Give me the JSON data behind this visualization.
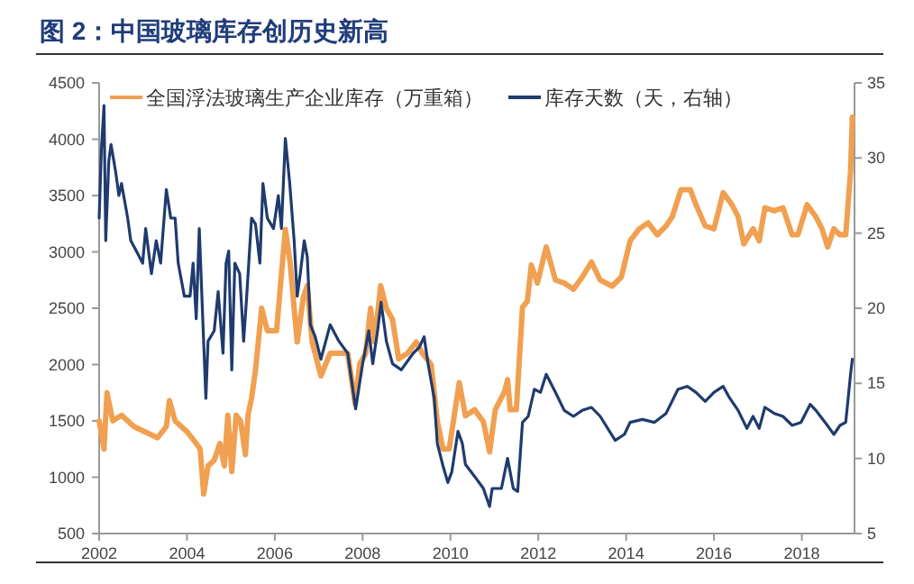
{
  "chart_data": {
    "type": "line",
    "title": "图 2：中国玻璃库存创历史新高",
    "xlim": [
      2002,
      2019.2
    ],
    "xticks": [
      2002,
      2004,
      2006,
      2008,
      2010,
      2012,
      2014,
      2016,
      2018
    ],
    "ylim": [
      500,
      4500
    ],
    "yticks": [
      500,
      1000,
      1500,
      2000,
      2500,
      3000,
      3500,
      4000,
      4500
    ],
    "y2lim": [
      5,
      35
    ],
    "y2ticks": [
      5,
      10,
      15,
      20,
      25,
      30,
      35
    ],
    "legend": "top",
    "grid": false,
    "series": [
      {
        "name": "全国浮法玻璃生产企业库存（万重箱）",
        "color": "#f0a050",
        "x": [
          2002.0,
          2002.11,
          2002.18,
          2002.31,
          2002.51,
          2002.79,
          2003.06,
          2003.33,
          2003.53,
          2003.6,
          2003.73,
          2003.87,
          2004.01,
          2004.21,
          2004.3,
          2004.38,
          2004.48,
          2004.62,
          2004.75,
          2004.85,
          2004.93,
          2005.02,
          2005.12,
          2005.22,
          2005.33,
          2005.39,
          2005.47,
          2005.56,
          2005.7,
          2005.83,
          2006.04,
          2006.15,
          2006.24,
          2006.35,
          2006.44,
          2006.51,
          2006.65,
          2006.74,
          2006.85,
          2007.05,
          2007.26,
          2007.53,
          2007.66,
          2007.83,
          2007.93,
          2008.07,
          2008.18,
          2008.27,
          2008.41,
          2008.54,
          2008.68,
          2008.82,
          2009.02,
          2009.22,
          2009.36,
          2009.56,
          2009.7,
          2009.83,
          2009.97,
          2010.2,
          2010.34,
          2010.55,
          2010.75,
          2010.89,
          2011.02,
          2011.23,
          2011.3,
          2011.36,
          2011.5,
          2011.64,
          2011.75,
          2011.84,
          2011.98,
          2012.18,
          2012.39,
          2012.59,
          2012.8,
          2013.0,
          2013.21,
          2013.41,
          2013.68,
          2013.89,
          2014.09,
          2014.3,
          2014.5,
          2014.71,
          2014.91,
          2015.05,
          2015.25,
          2015.46,
          2015.59,
          2015.8,
          2016.0,
          2016.21,
          2016.41,
          2016.55,
          2016.68,
          2016.89,
          2017.03,
          2017.16,
          2017.37,
          2017.57,
          2017.78,
          2017.91,
          2018.12,
          2018.32,
          2018.46,
          2018.59,
          2018.73,
          2018.87,
          2019.0,
          2019.11,
          2019.15
        ],
        "values": [
          1500,
          1250,
          1750,
          1500,
          1550,
          1450,
          1400,
          1350,
          1450,
          1680,
          1500,
          1450,
          1400,
          1300,
          1250,
          850,
          1100,
          1150,
          1300,
          1100,
          1550,
          1050,
          1550,
          1500,
          1200,
          1550,
          1700,
          1950,
          2500,
          2300,
          2300,
          2800,
          3200,
          2900,
          2500,
          2200,
          2600,
          2700,
          2200,
          1900,
          2100,
          2100,
          2100,
          1650,
          2000,
          2100,
          2500,
          2200,
          2700,
          2500,
          2400,
          2050,
          2100,
          2200,
          2100,
          2000,
          1500,
          1250,
          1250,
          1840,
          1545,
          1599,
          1492,
          1224,
          1599,
          1759,
          1866,
          1599,
          1599,
          2509,
          2562,
          2883,
          2723,
          3044,
          2750,
          2723,
          2669,
          2776,
          2910,
          2750,
          2696,
          2776,
          3098,
          3205,
          3258,
          3151,
          3231,
          3312,
          3553,
          3553,
          3419,
          3231,
          3205,
          3526,
          3419,
          3312,
          3071,
          3205,
          3098,
          3392,
          3365,
          3392,
          3151,
          3151,
          3419,
          3312,
          3205,
          3044,
          3205,
          3151,
          3151,
          3713,
          4195
        ]
      },
      {
        "name": "库存天数（天，右轴）",
        "color": "#1f3b6e",
        "axis": "y2",
        "x": [
          2002.0,
          2002.05,
          2002.11,
          2002.15,
          2002.22,
          2002.27,
          2002.38,
          2002.45,
          2002.51,
          2002.65,
          2002.72,
          2002.85,
          2002.99,
          2003.06,
          2003.19,
          2003.3,
          2003.4,
          2003.53,
          2003.63,
          2003.73,
          2003.8,
          2003.94,
          2004.07,
          2004.14,
          2004.21,
          2004.28,
          2004.37,
          2004.43,
          2004.48,
          2004.62,
          2004.71,
          2004.82,
          2004.89,
          2004.95,
          2005.02,
          2005.09,
          2005.2,
          2005.29,
          2005.36,
          2005.47,
          2005.56,
          2005.66,
          2005.73,
          2005.83,
          2005.97,
          2006.08,
          2006.15,
          2006.24,
          2006.34,
          2006.44,
          2006.51,
          2006.58,
          2006.67,
          2006.74,
          2006.81,
          2006.92,
          2007.05,
          2007.26,
          2007.46,
          2007.66,
          2007.84,
          2008.0,
          2008.14,
          2008.23,
          2008.34,
          2008.42,
          2008.54,
          2008.68,
          2008.88,
          2009.15,
          2009.29,
          2009.4,
          2009.49,
          2009.63,
          2009.7,
          2009.83,
          2009.94,
          2010.03,
          2010.17,
          2010.27,
          2010.34,
          2010.55,
          2010.75,
          2010.89,
          2010.95,
          2011.16,
          2011.3,
          2011.43,
          2011.53,
          2011.64,
          2011.77,
          2011.91,
          2012.05,
          2012.18,
          2012.39,
          2012.59,
          2012.8,
          2013.0,
          2013.21,
          2013.41,
          2013.75,
          2013.96,
          2014.09,
          2014.37,
          2014.64,
          2014.91,
          2015.18,
          2015.39,
          2015.59,
          2015.8,
          2016.0,
          2016.21,
          2016.34,
          2016.55,
          2016.75,
          2016.89,
          2017.03,
          2017.16,
          2017.37,
          2017.57,
          2017.78,
          2017.98,
          2018.19,
          2018.32,
          2018.53,
          2018.73,
          2018.87,
          2019.0,
          2019.11,
          2019.15
        ],
        "values": [
          26,
          30.5,
          33.5,
          24.5,
          29.8,
          30.9,
          29,
          27.5,
          28.3,
          26,
          24.5,
          23.8,
          23,
          25.3,
          22.3,
          24.5,
          23,
          27.9,
          26,
          26,
          23,
          20.8,
          20.8,
          23,
          19.3,
          25.3,
          18.5,
          14,
          17.8,
          18.5,
          21.1,
          17,
          23,
          23.8,
          15.9,
          23,
          22.3,
          17.8,
          20.8,
          26,
          25.6,
          23,
          28.3,
          26,
          25.3,
          27.5,
          25.3,
          31.3,
          28.3,
          24.5,
          20.8,
          22.3,
          24.5,
          23.4,
          18.9,
          18.1,
          16.6,
          18.9,
          17.8,
          17,
          13.3,
          16.3,
          18.5,
          16.3,
          18.5,
          20.4,
          17.8,
          16.3,
          15.9,
          17,
          17.4,
          18.1,
          16.3,
          14,
          11,
          9.5,
          8.4,
          9.1,
          11.8,
          11,
          9.6,
          8.8,
          8.0,
          6.8,
          8.0,
          8.0,
          10.0,
          8.0,
          7.8,
          12.4,
          12.8,
          14.6,
          14.4,
          15.6,
          14.4,
          13.2,
          12.8,
          13.2,
          13.4,
          12.8,
          11.2,
          11.6,
          12.4,
          12.6,
          12.4,
          13.0,
          14.6,
          14.8,
          14.4,
          13.8,
          14.4,
          14.8,
          14.1,
          13.2,
          12.0,
          12.8,
          12.0,
          13.4,
          13.0,
          12.8,
          12.2,
          12.4,
          13.6,
          13.2,
          12.4,
          11.6,
          12.2,
          12.4,
          15.6,
          16.6
        ]
      }
    ]
  }
}
